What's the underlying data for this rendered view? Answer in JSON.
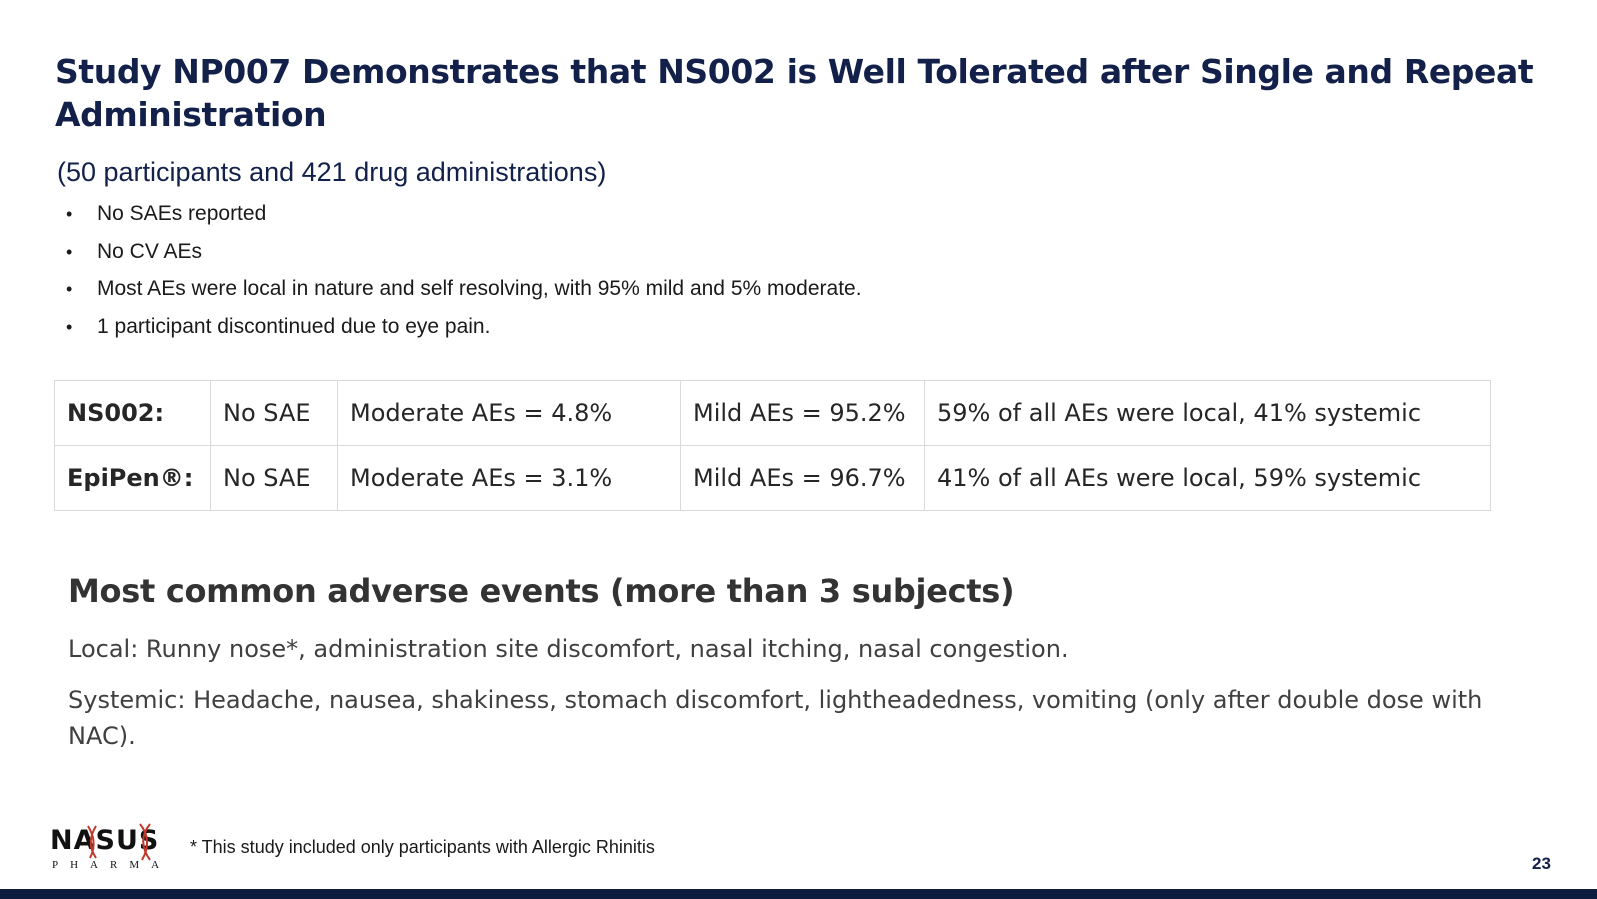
{
  "slide": {
    "title": "Study NP007 Demonstrates that NS002 is Well Tolerated after Single and Repeat Administration",
    "subtitle": "(50 participants and 421 drug administrations)",
    "bullet_glyph": "•",
    "bullets": [
      "No SAEs reported",
      "No CV AEs",
      "Most AEs were local in nature and self resolving, with 95% mild and 5% moderate.",
      "1 participant discontinued due to eye pain."
    ],
    "table": {
      "rows": [
        [
          "NS002:",
          "No SAE",
          "Moderate AEs = 4.8%",
          "Mild AEs = 95.2%",
          "59% of all AEs were local, 41% systemic"
        ],
        [
          "EpiPen®:",
          "No SAE",
          "Moderate AEs = 3.1%",
          "Mild AEs = 96.7%",
          "41% of all AEs were local, 59% systemic"
        ]
      ]
    },
    "common_ae": {
      "heading": "Most common adverse events (more than 3 subjects)",
      "local": "Local: Runny nose*, administration site discomfort, nasal itching, nasal congestion.",
      "systemic": "Systemic: Headache, nausea, shakiness, stomach discomfort, lightheadedness, vomiting (only after double dose with NAC)."
    },
    "logo": {
      "word": "NASUS",
      "sub": "PHARMA"
    },
    "footnote": "* This study included only participants with Allergic Rhinitis",
    "page_number": "23",
    "colors": {
      "title": "#13214a",
      "bottom_bar": "#0e1d3f",
      "table_border": "#d9d9d9",
      "logo_helix": "#c0392b"
    }
  }
}
